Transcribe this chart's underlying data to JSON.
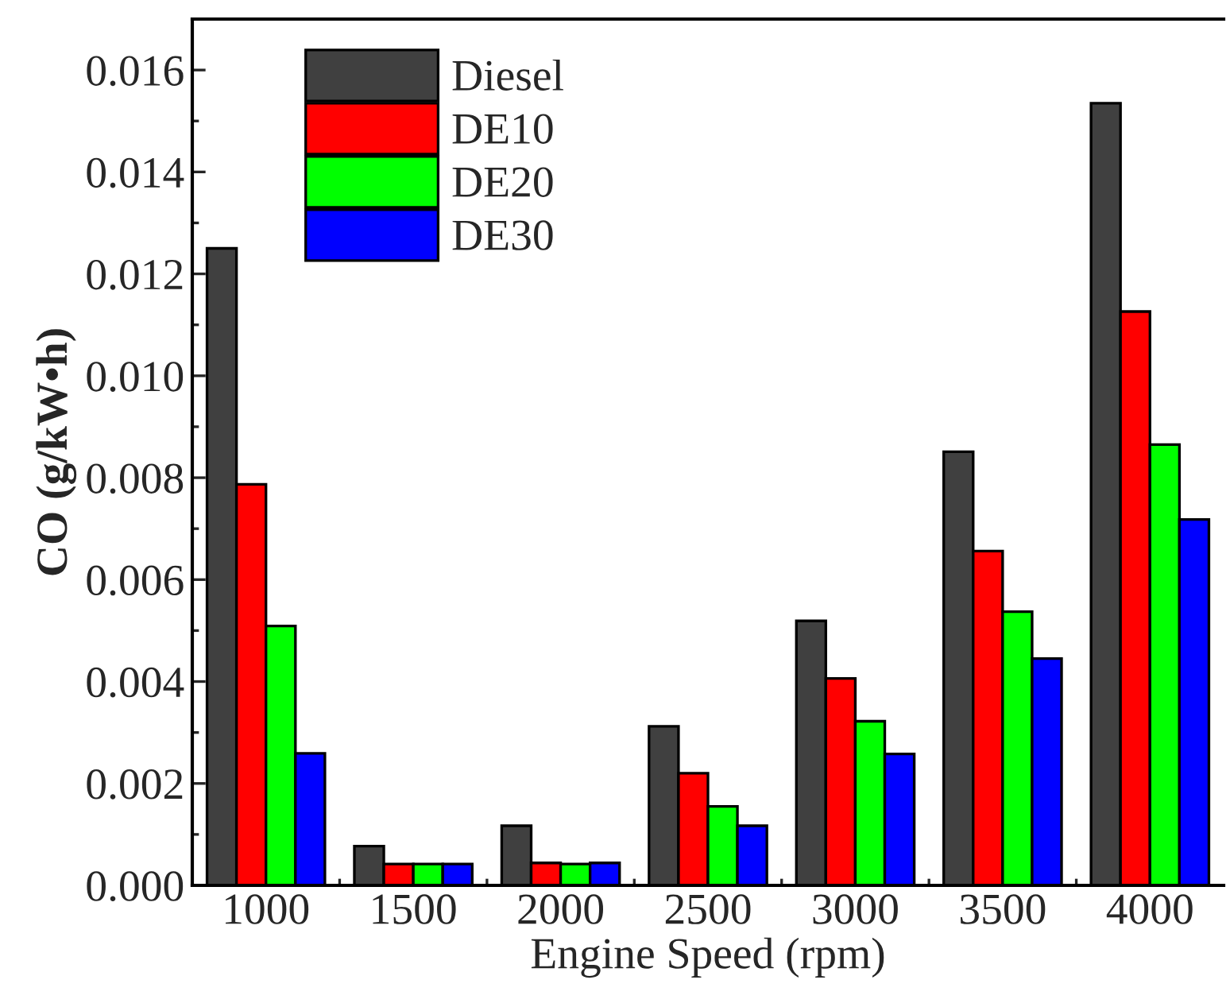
{
  "chart_data": {
    "type": "bar",
    "xlabel": "Engine Speed (rpm)",
    "ylabel": "CO (g/kW•h)",
    "categories": [
      "1000",
      "1500",
      "2000",
      "2500",
      "3000",
      "3500",
      "4000"
    ],
    "series": [
      {
        "name": "Diesel",
        "color": "#404040",
        "values": [
          0.0125,
          0.00077,
          0.00117,
          0.00312,
          0.00519,
          0.00851,
          0.01535
        ]
      },
      {
        "name": "DE10",
        "color": "#ff0000",
        "values": [
          0.00787,
          0.00042,
          0.00044,
          0.0022,
          0.00406,
          0.00656,
          0.01126
        ]
      },
      {
        "name": "DE20",
        "color": "#00ff00",
        "values": [
          0.00509,
          0.00042,
          0.00042,
          0.00155,
          0.00322,
          0.00537,
          0.00865
        ]
      },
      {
        "name": "DE30",
        "color": "#0000ff",
        "values": [
          0.00259,
          0.00042,
          0.00044,
          0.00117,
          0.00258,
          0.00445,
          0.00718
        ]
      }
    ],
    "ylim": [
      0,
      0.017
    ],
    "yticks": [
      {
        "value": 0,
        "label": "0.000"
      },
      {
        "value": 0.002,
        "label": "0.002"
      },
      {
        "value": 0.004,
        "label": "0.004"
      },
      {
        "value": 0.006,
        "label": "0.006"
      },
      {
        "value": 0.008,
        "label": "0.008"
      },
      {
        "value": 0.01,
        "label": "0.010"
      },
      {
        "value": 0.012,
        "label": "0.012"
      },
      {
        "value": 0.014,
        "label": "0.014"
      },
      {
        "value": 0.016,
        "label": "0.016"
      }
    ],
    "grid": false,
    "legend": "top left"
  }
}
